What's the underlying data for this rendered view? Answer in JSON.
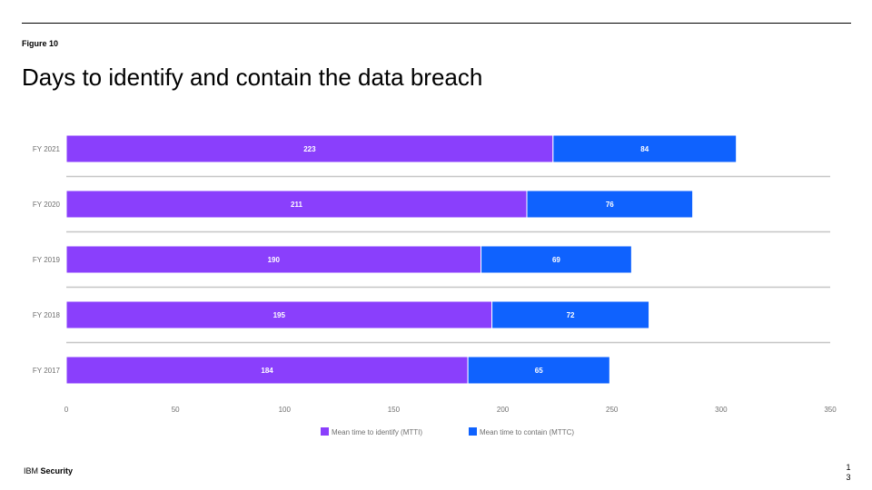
{
  "figure_label": "Figure 10",
  "title": "Days to identify and contain the data breach",
  "footer": {
    "brand": "IBM",
    "product": "Security"
  },
  "page_number": "13",
  "colors": {
    "mtti": "#8a3ffc",
    "mttc": "#0f62fe",
    "grid": "#c6c6c6",
    "label": "#6f6f6f"
  },
  "chart_data": {
    "type": "bar",
    "orientation": "horizontal",
    "stacked": true,
    "categories": [
      "FY 2021",
      "FY 2020",
      "FY 2019",
      "FY 2018",
      "FY 2017"
    ],
    "series": [
      {
        "name": "Mean time to identify (MTTI)",
        "color": "#8a3ffc",
        "values": [
          223,
          211,
          190,
          195,
          184
        ]
      },
      {
        "name": "Mean time to contain (MTTC)",
        "color": "#0f62fe",
        "values": [
          84,
          76,
          69,
          72,
          65
        ]
      }
    ],
    "xlim": [
      0,
      350
    ],
    "xticks": [
      0,
      50,
      100,
      150,
      200,
      250,
      300,
      350
    ],
    "legend_position": "bottom"
  }
}
